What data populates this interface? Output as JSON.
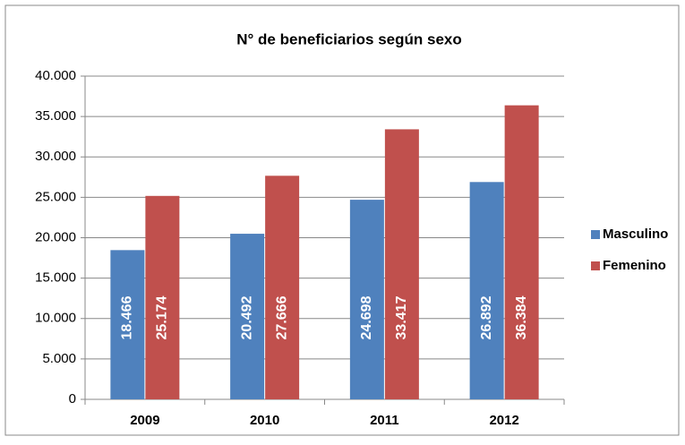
{
  "chart_data": {
    "type": "bar",
    "title": "N° de beneficiarios según sexo",
    "categories": [
      "2009",
      "2010",
      "2011",
      "2012"
    ],
    "series": [
      {
        "name": "Masculino",
        "color": "#4f81bd",
        "values": [
          18466,
          20492,
          24698,
          26892
        ],
        "value_labels": [
          "18.466",
          "20.492",
          "24.698",
          "26.892"
        ]
      },
      {
        "name": "Femenino",
        "color": "#c0504d",
        "values": [
          25174,
          27666,
          33417,
          36384
        ],
        "value_labels": [
          "25.174",
          "27.666",
          "33.417",
          "36.384"
        ]
      }
    ],
    "ylim": [
      0,
      40000
    ],
    "yticks": [
      0,
      {
        "value": 5000,
        "label": "5.000"
      },
      {
        "value": 10000,
        "label": "10.000"
      },
      {
        "value": 15000,
        "label": "15.000"
      },
      {
        "value": 20000,
        "label": "20.000"
      },
      {
        "value": 25000,
        "label": "25.000"
      },
      {
        "value": 30000,
        "label": "30.000"
      },
      {
        "value": 35000,
        "label": "35.000"
      },
      {
        "value": 40000,
        "label": "40.000"
      }
    ],
    "grid": true,
    "legend": "right"
  }
}
